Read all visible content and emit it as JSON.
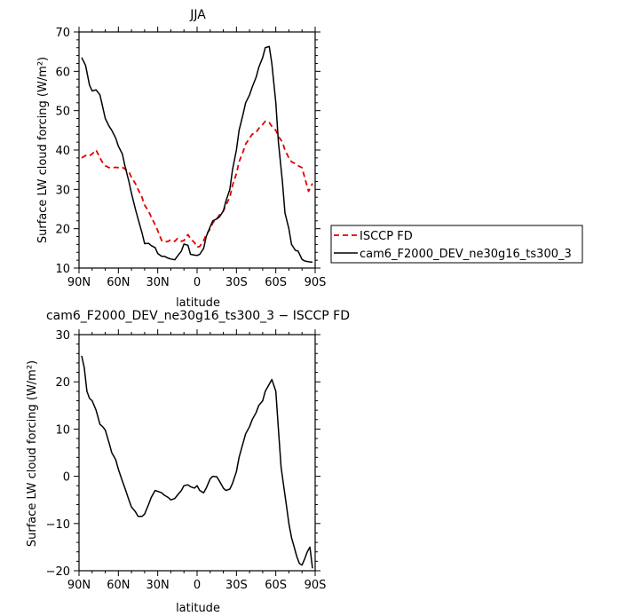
{
  "chart_data": [
    {
      "type": "line",
      "title": "JJA",
      "xlabel": "latitude",
      "ylabel": "Surface LW cloud forcing (W/m²)",
      "xlim": [
        90,
        -90
      ],
      "ylim": [
        10,
        70
      ],
      "xticks": [
        90,
        60,
        30,
        0,
        -30,
        -60,
        -90
      ],
      "xtick_labels": [
        "90N",
        "60N",
        "30N",
        "0",
        "30S",
        "60S",
        "90S"
      ],
      "yticks": [
        10,
        20,
        30,
        40,
        50,
        60,
        70
      ],
      "ytick_labels": [
        "10",
        "20",
        "30",
        "40",
        "50",
        "60",
        "70"
      ],
      "legend_position": "right",
      "series": [
        {
          "name": "ISCCP FD",
          "color": "#e00000",
          "dash": "dashed",
          "x": [
            88,
            85,
            82,
            80,
            77,
            74,
            72,
            70,
            67,
            65,
            62,
            60,
            57,
            55,
            52,
            50,
            47,
            45,
            42,
            40,
            37,
            35,
            32,
            30,
            27,
            25,
            22,
            20,
            17,
            15,
            12,
            10,
            7,
            5,
            2,
            0,
            -2,
            -5,
            -7,
            -10,
            -12,
            -15,
            -17,
            -20,
            -22,
            -25,
            -27,
            -30,
            -32,
            -35,
            -37,
            -40,
            -42,
            -45,
            -47,
            -50,
            -52,
            -55,
            -57,
            -60,
            -62,
            -65,
            -67,
            -70,
            -72,
            -75,
            -77,
            -80,
            -82,
            -85,
            -88
          ],
          "y": [
            38,
            38.6,
            38.5,
            39,
            40,
            38,
            36.8,
            36,
            35.5,
            35.5,
            35.6,
            35.5,
            35.6,
            35.2,
            34.5,
            33,
            31.5,
            30,
            28,
            26,
            24.5,
            23,
            21,
            19.5,
            17,
            16.6,
            16.8,
            17.2,
            16.8,
            17.5,
            16.8,
            17,
            18.5,
            17.5,
            16.5,
            15.3,
            15.5,
            17,
            18.5,
            20,
            21.5,
            22.5,
            23.5,
            24.5,
            26,
            28,
            31,
            34,
            37,
            39.5,
            41.5,
            43,
            44,
            44.5,
            45.5,
            46.5,
            47.3,
            47,
            46,
            45,
            43.5,
            42,
            40,
            38,
            37,
            36.5,
            36,
            35.5,
            33,
            29.5,
            31.5
          ]
        },
        {
          "name": "cam6_F2000_DEV_ne30g16_ts300_3",
          "color": "#000000",
          "dash": "solid",
          "x": [
            88,
            85,
            82,
            80,
            77,
            74,
            72,
            70,
            67,
            65,
            62,
            60,
            57,
            55,
            52,
            50,
            47,
            45,
            42,
            40,
            37,
            35,
            32,
            30,
            27,
            25,
            22,
            20,
            17,
            15,
            12,
            10,
            7,
            5,
            2,
            0,
            -2,
            -5,
            -7,
            -10,
            -12,
            -15,
            -17,
            -20,
            -22,
            -25,
            -27,
            -30,
            -32,
            -35,
            -37,
            -40,
            -42,
            -45,
            -47,
            -50,
            -52,
            -55,
            -57,
            -60,
            -62,
            -65,
            -67,
            -70,
            -72,
            -75,
            -77,
            -80,
            -82,
            -85,
            -88
          ],
          "y": [
            63.5,
            61.5,
            56.5,
            55,
            55.3,
            54,
            51,
            48,
            46,
            45,
            43,
            41,
            39,
            36,
            32,
            29,
            25,
            22.5,
            19,
            16.2,
            16.3,
            15.7,
            15.2,
            13.7,
            13,
            13,
            12.5,
            12.3,
            12.1,
            13,
            14.3,
            16.1,
            15.8,
            13.5,
            13.3,
            13.2,
            13.5,
            15,
            18,
            20.5,
            22,
            22.5,
            23,
            24.5,
            27,
            30,
            35,
            40,
            45,
            49,
            52,
            54,
            56,
            58.5,
            61,
            63.5,
            66,
            66.3,
            62,
            52,
            42,
            32,
            24,
            20,
            16,
            14.5,
            14.3,
            12.2,
            11.8,
            11.6,
            11.5
          ]
        }
      ]
    },
    {
      "type": "line",
      "title": "cam6_F2000_DEV_ne30g16_ts300_3 − ISCCP FD",
      "xlabel": "latitude",
      "ylabel": "Surface LW cloud forcing (W/m²)",
      "xlim": [
        90,
        -90
      ],
      "ylim": [
        -20,
        30
      ],
      "xticks": [
        90,
        60,
        30,
        0,
        -30,
        -60,
        -90
      ],
      "xtick_labels": [
        "90N",
        "60N",
        "30N",
        "0",
        "30S",
        "60S",
        "90S"
      ],
      "yticks": [
        -20,
        -10,
        0,
        10,
        20,
        30
      ],
      "ytick_labels": [
        "−20",
        "−10",
        "0",
        "10",
        "20",
        "30"
      ],
      "series": [
        {
          "color": "#000000",
          "dash": "solid",
          "x": [
            88,
            86,
            84,
            82,
            80,
            77,
            74,
            72,
            70,
            67,
            65,
            62,
            60,
            57,
            55,
            52,
            50,
            47,
            45,
            42,
            40,
            37,
            35,
            32,
            30,
            27,
            25,
            22,
            20,
            17,
            15,
            12,
            10,
            7,
            5,
            2,
            0,
            -2,
            -5,
            -7,
            -10,
            -12,
            -15,
            -17,
            -20,
            -22,
            -25,
            -27,
            -30,
            -32,
            -35,
            -37,
            -40,
            -42,
            -45,
            -47,
            -50,
            -52,
            -55,
            -57,
            -60,
            -62,
            -64,
            -66,
            -68,
            -70,
            -72,
            -74,
            -76,
            -78,
            -80,
            -82,
            -84,
            -86,
            -88
          ],
          "y": [
            25.5,
            23,
            18,
            16.5,
            16,
            14,
            11,
            10.5,
            9.8,
            7,
            5,
            3.5,
            1.5,
            -1,
            -2.5,
            -5,
            -6.5,
            -7.5,
            -8.5,
            -8.5,
            -8,
            -6,
            -4.5,
            -3,
            -3.2,
            -3.5,
            -4,
            -4.5,
            -5,
            -4.7,
            -4,
            -3,
            -2,
            -1.8,
            -2.2,
            -2.5,
            -2,
            -3,
            -3.5,
            -2.5,
            -0.5,
            0,
            -0.1,
            -1,
            -2.5,
            -3,
            -2.7,
            -1.5,
            1,
            4,
            7,
            9,
            10.5,
            12,
            13.5,
            15,
            16,
            18,
            19.5,
            20.5,
            18,
            10,
            2,
            -2,
            -6,
            -10,
            -13,
            -15,
            -17,
            -18.5,
            -18.8,
            -17.5,
            -16,
            -15,
            -19.5
          ]
        }
      ]
    }
  ]
}
